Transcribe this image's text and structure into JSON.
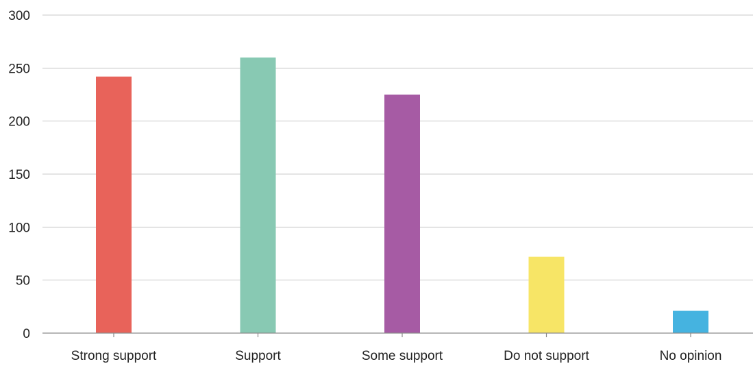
{
  "chart_data": {
    "type": "bar",
    "categories": [
      "Strong support",
      "Support",
      "Some support",
      "Do not support",
      "No opinion"
    ],
    "values": [
      242,
      260,
      225,
      72,
      21
    ],
    "colors": [
      "#e8635a",
      "#88c9b3",
      "#a65ba4",
      "#f7e566",
      "#45b3e0"
    ],
    "ylim": [
      0,
      300
    ],
    "yticks": [
      0,
      50,
      100,
      150,
      200,
      250,
      300
    ],
    "grid": true,
    "legend": "none",
    "title": "",
    "xlabel": "",
    "ylabel": ""
  }
}
